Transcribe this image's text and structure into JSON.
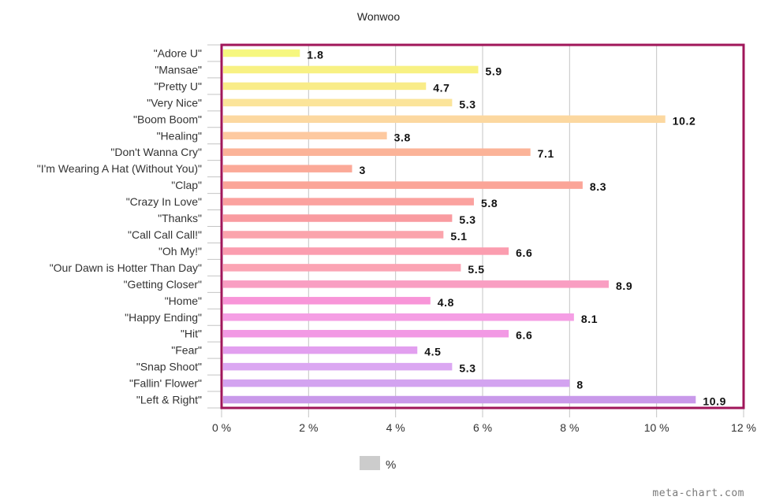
{
  "chart_data": {
    "type": "bar",
    "orientation": "horizontal",
    "title": "Wonwoo",
    "xlabel": "",
    "ylabel": "",
    "categories": [
      "\"Adore U\"",
      "\"Mansae\"",
      "\"Pretty U\"",
      "\"Very Nice\"",
      "\"Boom Boom\"",
      "\"Healing\"",
      "\"Don't Wanna Cry\"",
      "\"I'm Wearing A Hat (Without You)\"",
      "\"Clap\"",
      "\"Crazy In Love\"",
      "\"Thanks\"",
      "\"Call Call Call!\"",
      "\"Oh My!\"",
      "\"Our Dawn is Hotter Than Day\"",
      "\"Getting Closer\"",
      "\"Home\"",
      "\"Happy Ending\"",
      "\"Hit\"",
      "\"Fear\"",
      "\"Snap Shoot\"",
      "\"Fallin' Flower\"",
      "\"Left & Right\""
    ],
    "values": [
      1.8,
      5.9,
      4.7,
      5.3,
      10.2,
      3.8,
      7.1,
      3,
      8.3,
      5.8,
      5.3,
      5.1,
      6.6,
      5.5,
      8.9,
      4.8,
      8.1,
      6.6,
      4.5,
      5.3,
      8,
      10.9
    ],
    "value_labels": [
      "1.8",
      "5.9",
      "4.7",
      "5.3",
      "10.2",
      "3.8",
      "7.1",
      "3",
      "8.3",
      "5.8",
      "5.3",
      "5.1",
      "6.6",
      "5.5",
      "8.9",
      "4.8",
      "8.1",
      "6.6",
      "4.5",
      "5.3",
      "8",
      "10.9"
    ],
    "colors": [
      "#f6f77f",
      "#f8f183",
      "#f9ec88",
      "#fbe49a",
      "#fcd8a0",
      "#fdc9a0",
      "#fbb398",
      "#fba998",
      "#fba598",
      "#fba29f",
      "#f99ba0",
      "#fba4ac",
      "#fb9daf",
      "#fba4b4",
      "#f99ec2",
      "#f895d8",
      "#f59ee4",
      "#f299e4",
      "#e29fef",
      "#dba7f2",
      "#d3a3f0",
      "#c999ea"
    ],
    "xlim": [
      0,
      12
    ],
    "xticks": [
      0,
      2,
      4,
      6,
      8,
      10,
      12
    ],
    "xtick_labels": [
      "0 %",
      "2 %",
      "4 %",
      "6 %",
      "8 %",
      "10 %",
      "12 %"
    ],
    "grid": true,
    "legend": {
      "label": "%",
      "color": "#cccccc",
      "placement": "bottom-center"
    },
    "frame_color": "#a0165a"
  },
  "watermark": "meta-chart.com"
}
